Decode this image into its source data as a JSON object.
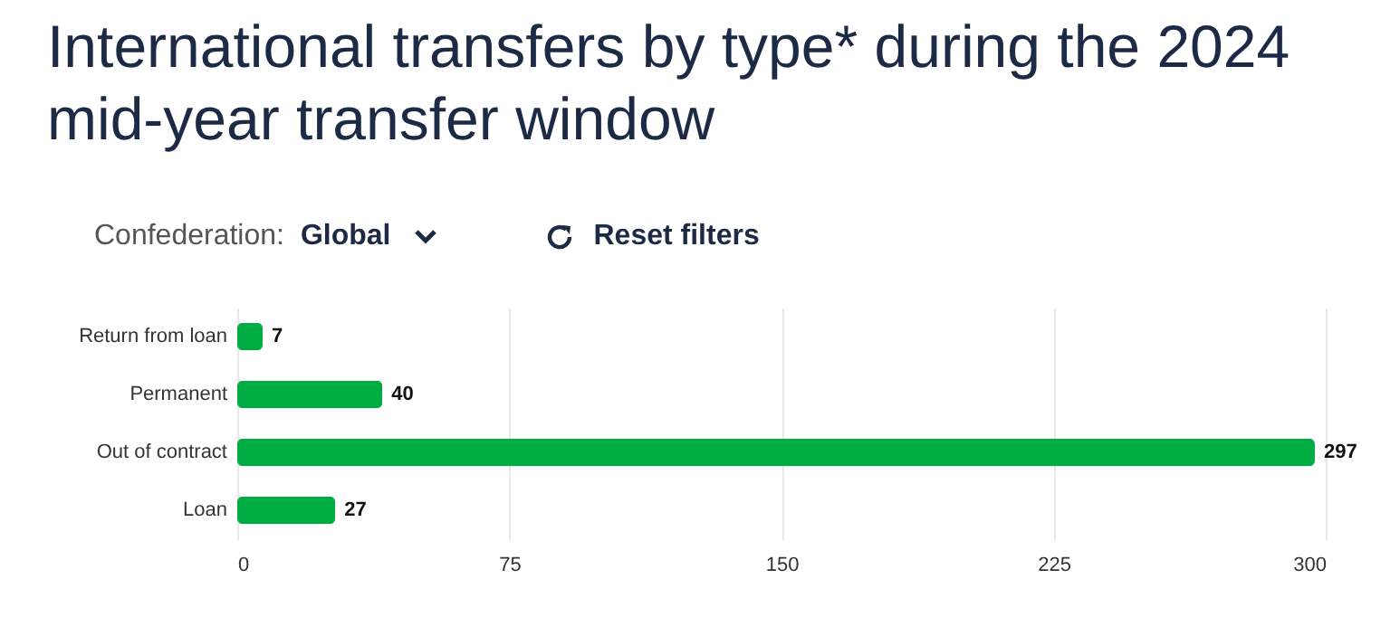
{
  "chart_data": {
    "type": "bar",
    "orientation": "horizontal",
    "title": "International transfers by type* during the 2024 mid-year transfer window",
    "annotations": [
      "Confederation:",
      "Global",
      "Reset filters"
    ],
    "categories": [
      "Return from loan",
      "Permanent",
      "Out of contract",
      "Loan"
    ],
    "values": [
      7,
      40,
      297,
      27
    ],
    "color": "#00ad43",
    "xlim": [
      0,
      300
    ],
    "xticks": [
      0,
      75,
      150,
      225,
      300
    ],
    "grid": "x",
    "data_labels": true
  }
}
